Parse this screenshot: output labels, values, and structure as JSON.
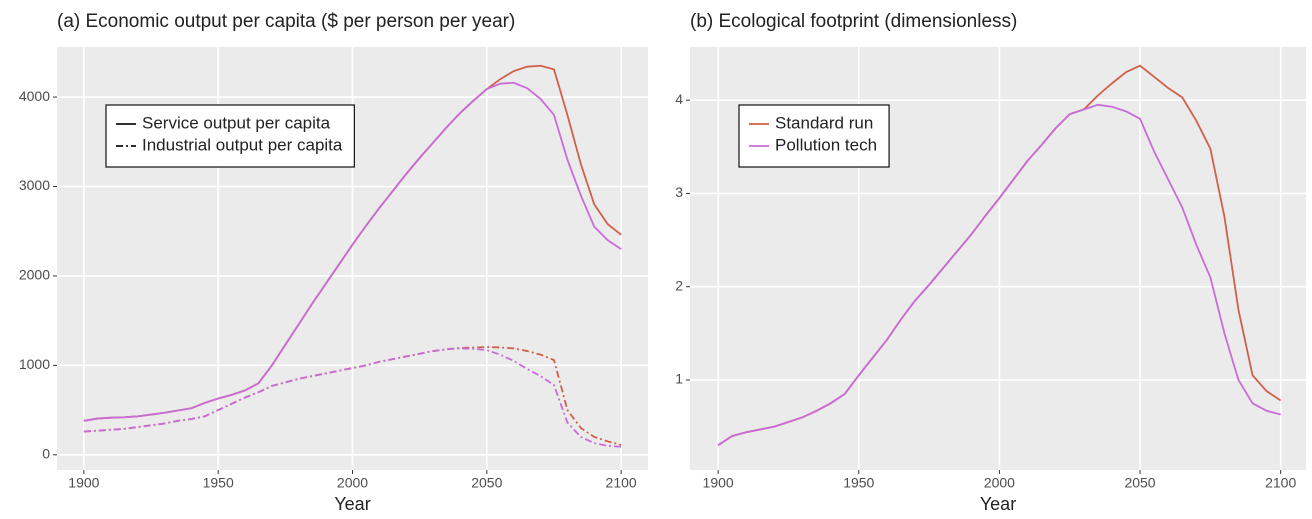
{
  "chart_data": [
    {
      "type": "line",
      "title": "(a) Economic output per capita ($ per person per year)",
      "x_label": "Year",
      "x": [
        1900,
        1905,
        1910,
        1915,
        1920,
        1925,
        1930,
        1935,
        1940,
        1945,
        1950,
        1955,
        1960,
        1965,
        1970,
        1975,
        1980,
        1985,
        1990,
        1995,
        2000,
        2005,
        2010,
        2015,
        2020,
        2025,
        2030,
        2035,
        2040,
        2045,
        2050,
        2055,
        2060,
        2065,
        2070,
        2075,
        2080,
        2085,
        2090,
        2095,
        2100
      ],
      "xlim": [
        1890,
        2110
      ],
      "ylim": [
        -170,
        4560
      ],
      "xticks": [
        1900,
        1950,
        2000,
        2050,
        2100
      ],
      "yticks": [
        0,
        1000,
        2000,
        3000,
        4000
      ],
      "grid": true,
      "legend_position": "top-left",
      "legend": [
        {
          "label": "Service output per capita",
          "dash": "solid"
        },
        {
          "label": "Industrial output per capita",
          "dash": "dotdash"
        }
      ],
      "series": [
        {
          "color": "#d0604a",
          "dash": "solid",
          "values": [
            380,
            405,
            415,
            420,
            430,
            450,
            470,
            495,
            520,
            580,
            630,
            670,
            720,
            800,
            1000,
            1230,
            1460,
            1690,
            1910,
            2130,
            2350,
            2560,
            2760,
            2950,
            3140,
            3320,
            3490,
            3660,
            3820,
            3960,
            4090,
            4200,
            4290,
            4340,
            4350,
            4310,
            3800,
            3250,
            2800,
            2580,
            2460
          ]
        },
        {
          "color": "#c86dd7",
          "dash": "solid",
          "values": [
            380,
            405,
            415,
            420,
            430,
            450,
            470,
            495,
            520,
            580,
            630,
            670,
            720,
            800,
            1000,
            1230,
            1460,
            1690,
            1910,
            2130,
            2350,
            2560,
            2760,
            2950,
            3140,
            3320,
            3490,
            3660,
            3820,
            3960,
            4090,
            4150,
            4160,
            4100,
            3980,
            3800,
            3300,
            2900,
            2550,
            2400,
            2300
          ]
        },
        {
          "color": "#d0604a",
          "dash": "dotdash",
          "values": [
            260,
            270,
            280,
            290,
            310,
            330,
            350,
            380,
            400,
            430,
            500,
            570,
            640,
            700,
            770,
            810,
            850,
            880,
            910,
            940,
            970,
            1000,
            1040,
            1070,
            1100,
            1130,
            1160,
            1180,
            1195,
            1200,
            1205,
            1200,
            1190,
            1160,
            1120,
            1060,
            500,
            300,
            200,
            150,
            110
          ]
        },
        {
          "color": "#c86dd7",
          "dash": "dotdash",
          "values": [
            260,
            270,
            280,
            290,
            310,
            330,
            350,
            380,
            400,
            430,
            500,
            570,
            640,
            700,
            770,
            810,
            850,
            880,
            910,
            940,
            970,
            1000,
            1040,
            1070,
            1100,
            1130,
            1160,
            1180,
            1190,
            1185,
            1170,
            1120,
            1050,
            960,
            880,
            780,
            360,
            200,
            130,
            100,
            90
          ]
        }
      ]
    },
    {
      "type": "line",
      "title": "(b) Ecological footprint (dimensionless)",
      "x_label": "Year",
      "x": [
        1900,
        1905,
        1910,
        1915,
        1920,
        1925,
        1930,
        1935,
        1940,
        1945,
        1950,
        1955,
        1960,
        1965,
        1970,
        1975,
        1980,
        1985,
        1990,
        1995,
        2000,
        2005,
        2010,
        2015,
        2020,
        2025,
        2030,
        2035,
        2040,
        2045,
        2050,
        2055,
        2060,
        2065,
        2070,
        2075,
        2080,
        2085,
        2090,
        2095,
        2100
      ],
      "xlim": [
        1890,
        2109
      ],
      "ylim": [
        0.035,
        4.57
      ],
      "xticks": [
        1900,
        1950,
        2000,
        2050,
        2100
      ],
      "yticks": [
        1,
        2,
        3,
        4
      ],
      "grid": true,
      "legend_position": "top-left",
      "series": [
        {
          "name": "Standard run",
          "color": "#d0604a",
          "dash": "solid",
          "values": [
            0.3,
            0.4,
            0.44,
            0.47,
            0.5,
            0.55,
            0.6,
            0.67,
            0.75,
            0.85,
            1.05,
            1.24,
            1.43,
            1.65,
            1.85,
            2.02,
            2.2,
            2.38,
            2.56,
            2.76,
            2.95,
            3.15,
            3.35,
            3.52,
            3.7,
            3.85,
            3.9,
            4.05,
            4.18,
            4.3,
            4.37,
            4.25,
            4.13,
            4.03,
            3.78,
            3.48,
            2.75,
            1.75,
            1.05,
            0.88,
            0.78
          ]
        },
        {
          "name": "Pollution tech",
          "color": "#c86dd7",
          "dash": "solid",
          "values": [
            0.3,
            0.4,
            0.44,
            0.47,
            0.5,
            0.55,
            0.6,
            0.67,
            0.75,
            0.85,
            1.05,
            1.24,
            1.43,
            1.65,
            1.85,
            2.02,
            2.2,
            2.38,
            2.56,
            2.76,
            2.95,
            3.15,
            3.35,
            3.52,
            3.7,
            3.85,
            3.9,
            3.95,
            3.93,
            3.88,
            3.8,
            3.45,
            3.15,
            2.85,
            2.45,
            2.1,
            1.5,
            1.0,
            0.75,
            0.67,
            0.63
          ]
        }
      ]
    }
  ]
}
